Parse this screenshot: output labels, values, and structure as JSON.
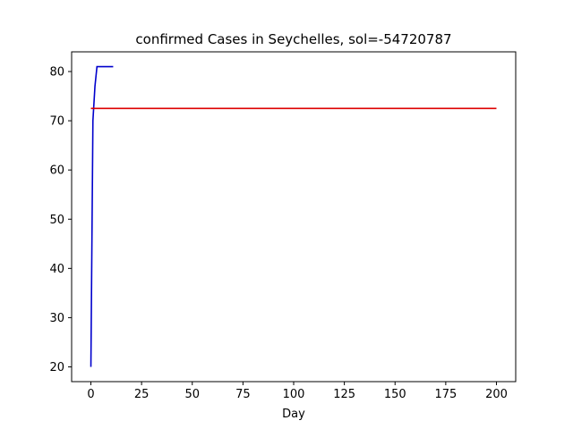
{
  "chart_data": {
    "type": "line",
    "title": "confirmed Cases in Seychelles, sol=-54720787",
    "xlabel": "Day",
    "ylabel": "",
    "xlim": [
      -9.5,
      209.5
    ],
    "ylim": [
      17,
      84
    ],
    "x_ticks": [
      0,
      25,
      50,
      75,
      100,
      125,
      150,
      175,
      200
    ],
    "y_ticks": [
      20,
      30,
      40,
      50,
      60,
      70,
      80
    ],
    "grid": false,
    "legend": "none",
    "series": [
      {
        "color": "#0000cc",
        "x": [
          0,
          1,
          2,
          3,
          4,
          5,
          6,
          7,
          8,
          9,
          10,
          11
        ],
        "y": [
          20,
          70,
          77,
          81,
          81,
          81,
          81,
          81,
          81,
          81,
          81,
          81
        ]
      },
      {
        "color": "#dd0000",
        "x": [
          0,
          200
        ],
        "y": [
          72.5,
          72.5
        ]
      }
    ]
  }
}
